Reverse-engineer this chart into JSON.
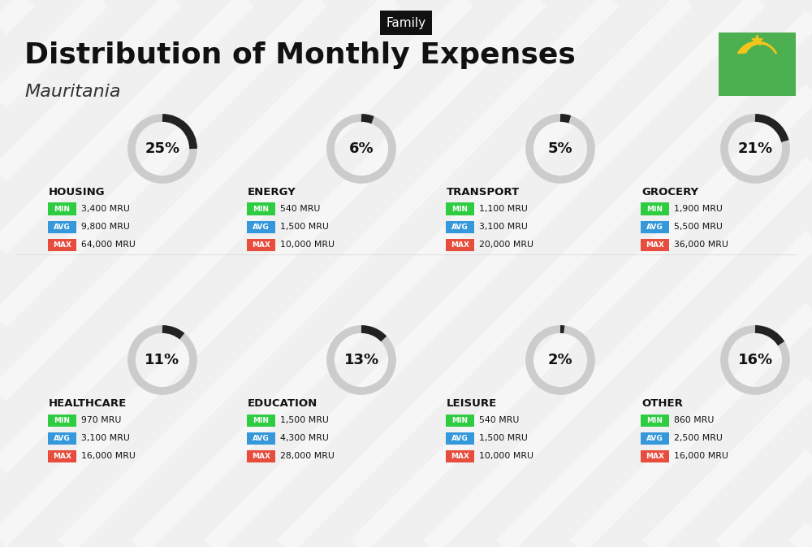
{
  "title": "Distribution of Monthly Expenses",
  "subtitle": "Mauritania",
  "category_label": "Family",
  "bg_color": "#f0f0f0",
  "categories": [
    {
      "name": "HOUSING",
      "pct": 25,
      "min_val": "3,400 MRU",
      "avg_val": "9,800 MRU",
      "max_val": "64,000 MRU",
      "row": 0,
      "col": 0
    },
    {
      "name": "ENERGY",
      "pct": 6,
      "min_val": "540 MRU",
      "avg_val": "1,500 MRU",
      "max_val": "10,000 MRU",
      "row": 0,
      "col": 1
    },
    {
      "name": "TRANSPORT",
      "pct": 5,
      "min_val": "1,100 MRU",
      "avg_val": "3,100 MRU",
      "max_val": "20,000 MRU",
      "row": 0,
      "col": 2
    },
    {
      "name": "GROCERY",
      "pct": 21,
      "min_val": "1,900 MRU",
      "avg_val": "5,500 MRU",
      "max_val": "36,000 MRU",
      "row": 0,
      "col": 3
    },
    {
      "name": "HEALTHCARE",
      "pct": 11,
      "min_val": "970 MRU",
      "avg_val": "3,100 MRU",
      "max_val": "16,000 MRU",
      "row": 1,
      "col": 0
    },
    {
      "name": "EDUCATION",
      "pct": 13,
      "min_val": "1,500 MRU",
      "avg_val": "4,300 MRU",
      "max_val": "28,000 MRU",
      "row": 1,
      "col": 1
    },
    {
      "name": "LEISURE",
      "pct": 2,
      "min_val": "540 MRU",
      "avg_val": "1,500 MRU",
      "max_val": "10,000 MRU",
      "row": 1,
      "col": 2
    },
    {
      "name": "OTHER",
      "pct": 16,
      "min_val": "860 MRU",
      "avg_val": "2,500 MRU",
      "max_val": "16,000 MRU",
      "row": 1,
      "col": 3
    }
  ],
  "min_color": "#2ecc40",
  "avg_color": "#3498db",
  "max_color": "#e74c3c",
  "label_color": "#ffffff",
  "arc_color": "#222222",
  "arc_bg_color": "#cccccc",
  "flag_bg": "#4caf50",
  "flag_symbol_color": "#f5c518"
}
